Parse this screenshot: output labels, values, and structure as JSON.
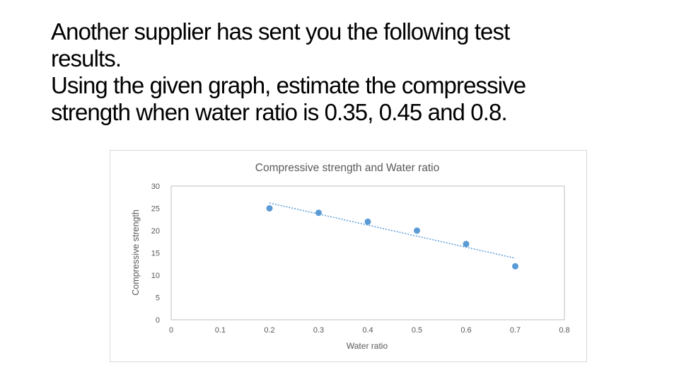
{
  "slide": {
    "line1": "Another supplier has sent you the following test",
    "line2": "results.",
    "line3": "Using the given graph, estimate the compressive",
    "line4": "strength when water ratio is 0.35, 0.45 and 0.8."
  },
  "chart_data": {
    "type": "scatter",
    "title": "Compressive strength and Water ratio",
    "xlabel": "Water ratio",
    "ylabel": "Compressive strength",
    "xlim": [
      0,
      0.8
    ],
    "ylim": [
      0,
      30
    ],
    "xticks": [
      "0",
      "0.1",
      "0.2",
      "0.3",
      "0.4",
      "0.5",
      "0.6",
      "0.7",
      "0.8"
    ],
    "yticks": [
      "0",
      "5",
      "10",
      "15",
      "20",
      "25",
      "30"
    ],
    "x": [
      0.2,
      0.3,
      0.4,
      0.5,
      0.6,
      0.7
    ],
    "y": [
      25,
      24,
      22,
      20,
      17,
      12
    ],
    "trendline": {
      "type": "linear",
      "x": [
        0.2,
        0.7
      ],
      "y": [
        26.2,
        13.8
      ]
    },
    "grid": false,
    "legend": "none",
    "point_color": "#5b9bd5",
    "trend_color": "#5b9bd5"
  }
}
